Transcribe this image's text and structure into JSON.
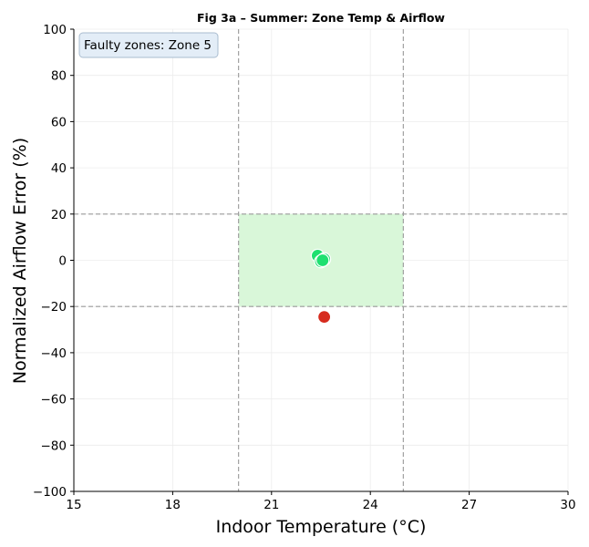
{
  "chart_data": {
    "type": "scatter",
    "title": "Fig 3a – Summer: Zone Temp & Airflow",
    "xlabel": "Indoor Temperature (°C)",
    "ylabel": "Normalized Airflow Error (%)",
    "xlim": [
      15,
      30
    ],
    "ylim": [
      -100,
      100
    ],
    "xticks": [
      15,
      18,
      21,
      24,
      27,
      30
    ],
    "yticks": [
      -100,
      -80,
      -60,
      -40,
      -20,
      0,
      20,
      40,
      60,
      80,
      100
    ],
    "xtick_labels": [
      "15",
      "18",
      "21",
      "24",
      "27",
      "30"
    ],
    "ytick_labels": [
      "−100",
      "−80",
      "−60",
      "−40",
      "−20",
      "0",
      "20",
      "40",
      "60",
      "80",
      "100"
    ],
    "grid": true,
    "comfort_band": {
      "x": [
        20,
        25
      ],
      "y": [
        -20,
        20
      ],
      "color": "#d9f7d9"
    },
    "reference_lines": {
      "x": [
        20,
        25
      ],
      "y": [
        -20,
        20
      ],
      "color": "#999999"
    },
    "points": [
      {
        "x": 22.4,
        "y": 2,
        "status": "normal"
      },
      {
        "x": 22.6,
        "y": 0.5,
        "status": "normal"
      },
      {
        "x": 22.5,
        "y": -0.5,
        "status": "normal"
      },
      {
        "x": 22.55,
        "y": 0,
        "status": "normal"
      },
      {
        "x": 22.6,
        "y": -24.5,
        "status": "faulty"
      }
    ],
    "colors": {
      "normal": "#1ee070",
      "faulty": "#d62b1e"
    },
    "annotation": "Faulty zones: Zone 5"
  }
}
